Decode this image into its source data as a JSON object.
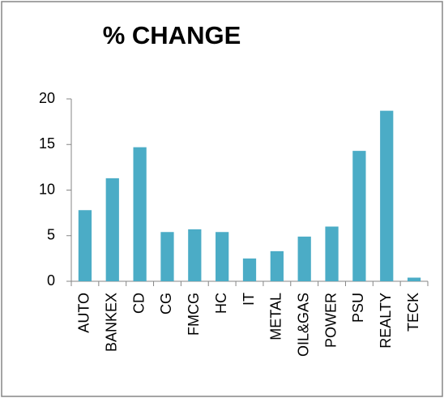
{
  "chart_data": {
    "type": "bar",
    "title": "% CHANGE",
    "categories": [
      "AUTO",
      "BANKEX",
      "CD",
      "CG",
      "FMCG",
      "HC",
      "IT",
      "METAL",
      "OIL&GAS",
      "POWER",
      "PSU",
      "REALTY",
      "TECK"
    ],
    "values": [
      7.8,
      11.3,
      14.7,
      5.4,
      5.7,
      5.4,
      2.5,
      3.3,
      4.9,
      6.0,
      14.3,
      18.7,
      0.4
    ],
    "color": "#4bacc6",
    "ylim": [
      0,
      20
    ],
    "yticks": [
      0,
      5,
      10,
      15,
      20
    ],
    "grid": false
  }
}
